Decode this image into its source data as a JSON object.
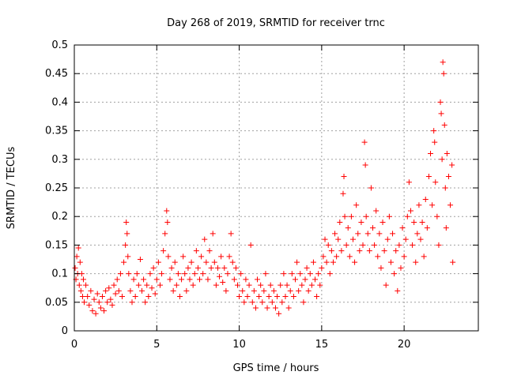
{
  "chart_data": {
    "type": "scatter",
    "title": "Day 268 of 2019, SRMTID for receiver trnc",
    "xlabel": "GPS time / hours",
    "ylabel": "SRMTID / TECUs",
    "xlim": [
      0,
      24.5
    ],
    "ylim": [
      0,
      0.5
    ],
    "grid": true,
    "marker": "+",
    "xticks": [
      0,
      5,
      10,
      15,
      20
    ],
    "xtick_labels": [
      "0",
      "5",
      "10",
      "15",
      "20"
    ],
    "yticks": [
      0,
      0.05,
      0.1,
      0.15,
      0.2,
      0.25,
      0.3,
      0.35,
      0.4,
      0.45,
      0.5
    ],
    "ytick_labels": [
      "0",
      "0.05",
      "0.1",
      "0.15",
      "0.2",
      "0.25",
      "0.3",
      "0.35",
      "0.4",
      "0.45",
      "0.5"
    ],
    "series": [
      {
        "name": "SRMTID",
        "color": "#ff0000",
        "points": [
          [
            0.05,
            0.11
          ],
          [
            0.1,
            0.09
          ],
          [
            0.15,
            0.13
          ],
          [
            0.2,
            0.1
          ],
          [
            0.25,
            0.145
          ],
          [
            0.3,
            0.08
          ],
          [
            0.35,
            0.12
          ],
          [
            0.4,
            0.07
          ],
          [
            0.45,
            0.1
          ],
          [
            0.5,
            0.06
          ],
          [
            0.55,
            0.09
          ],
          [
            0.6,
            0.05
          ],
          [
            0.7,
            0.08
          ],
          [
            0.8,
            0.06
          ],
          [
            0.9,
            0.045
          ],
          [
            1.0,
            0.07
          ],
          [
            1.1,
            0.035
          ],
          [
            1.2,
            0.055
          ],
          [
            1.3,
            0.03
          ],
          [
            1.4,
            0.065
          ],
          [
            1.5,
            0.05
          ],
          [
            1.6,
            0.04
          ],
          [
            1.7,
            0.06
          ],
          [
            1.8,
            0.035
          ],
          [
            1.9,
            0.07
          ],
          [
            2.0,
            0.05
          ],
          [
            2.1,
            0.075
          ],
          [
            2.2,
            0.055
          ],
          [
            2.3,
            0.045
          ],
          [
            2.4,
            0.08
          ],
          [
            2.5,
            0.065
          ],
          [
            2.6,
            0.09
          ],
          [
            2.7,
            0.07
          ],
          [
            2.8,
            0.1
          ],
          [
            2.9,
            0.06
          ],
          [
            3.0,
            0.12
          ],
          [
            3.1,
            0.15
          ],
          [
            3.15,
            0.19
          ],
          [
            3.2,
            0.17
          ],
          [
            3.25,
            0.13
          ],
          [
            3.3,
            0.1
          ],
          [
            3.4,
            0.07
          ],
          [
            3.5,
            0.05
          ],
          [
            3.6,
            0.09
          ],
          [
            3.7,
            0.06
          ],
          [
            3.8,
            0.1
          ],
          [
            3.9,
            0.08
          ],
          [
            4.0,
            0.125
          ],
          [
            4.1,
            0.07
          ],
          [
            4.2,
            0.09
          ],
          [
            4.3,
            0.05
          ],
          [
            4.4,
            0.08
          ],
          [
            4.5,
            0.06
          ],
          [
            4.6,
            0.1
          ],
          [
            4.7,
            0.075
          ],
          [
            4.8,
            0.11
          ],
          [
            4.9,
            0.065
          ],
          [
            5.0,
            0.09
          ],
          [
            5.1,
            0.12
          ],
          [
            5.2,
            0.08
          ],
          [
            5.3,
            0.1
          ],
          [
            5.4,
            0.14
          ],
          [
            5.5,
            0.17
          ],
          [
            5.6,
            0.21
          ],
          [
            5.65,
            0.19
          ],
          [
            5.7,
            0.13
          ],
          [
            5.8,
            0.09
          ],
          [
            5.9,
            0.11
          ],
          [
            6.0,
            0.07
          ],
          [
            6.1,
            0.12
          ],
          [
            6.2,
            0.08
          ],
          [
            6.3,
            0.1
          ],
          [
            6.4,
            0.06
          ],
          [
            6.5,
            0.09
          ],
          [
            6.6,
            0.13
          ],
          [
            6.7,
            0.1
          ],
          [
            6.8,
            0.07
          ],
          [
            6.9,
            0.11
          ],
          [
            7.0,
            0.09
          ],
          [
            7.1,
            0.12
          ],
          [
            7.2,
            0.08
          ],
          [
            7.3,
            0.1
          ],
          [
            7.4,
            0.14
          ],
          [
            7.5,
            0.11
          ],
          [
            7.6,
            0.09
          ],
          [
            7.7,
            0.13
          ],
          [
            7.8,
            0.1
          ],
          [
            7.9,
            0.16
          ],
          [
            8.0,
            0.12
          ],
          [
            8.1,
            0.09
          ],
          [
            8.2,
            0.14
          ],
          [
            8.3,
            0.11
          ],
          [
            8.4,
            0.17
          ],
          [
            8.5,
            0.12
          ],
          [
            8.6,
            0.08
          ],
          [
            8.7,
            0.11
          ],
          [
            8.8,
            0.095
          ],
          [
            8.9,
            0.13
          ],
          [
            9.0,
            0.085
          ],
          [
            9.1,
            0.11
          ],
          [
            9.2,
            0.07
          ],
          [
            9.3,
            0.1
          ],
          [
            9.4,
            0.13
          ],
          [
            9.5,
            0.17
          ],
          [
            9.6,
            0.12
          ],
          [
            9.7,
            0.09
          ],
          [
            9.8,
            0.11
          ],
          [
            9.9,
            0.08
          ],
          [
            10.0,
            0.06
          ],
          [
            10.1,
            0.1
          ],
          [
            10.2,
            0.07
          ],
          [
            10.3,
            0.05
          ],
          [
            10.4,
            0.09
          ],
          [
            10.5,
            0.06
          ],
          [
            10.6,
            0.08
          ],
          [
            10.7,
            0.15
          ],
          [
            10.8,
            0.05
          ],
          [
            10.9,
            0.07
          ],
          [
            11.0,
            0.04
          ],
          [
            11.1,
            0.09
          ],
          [
            11.2,
            0.06
          ],
          [
            11.3,
            0.08
          ],
          [
            11.4,
            0.05
          ],
          [
            11.5,
            0.07
          ],
          [
            11.6,
            0.1
          ],
          [
            11.7,
            0.04
          ],
          [
            11.8,
            0.06
          ],
          [
            11.9,
            0.08
          ],
          [
            12.0,
            0.05
          ],
          [
            12.1,
            0.07
          ],
          [
            12.2,
            0.04
          ],
          [
            12.3,
            0.06
          ],
          [
            12.4,
            0.03
          ],
          [
            12.5,
            0.08
          ],
          [
            12.6,
            0.05
          ],
          [
            12.7,
            0.1
          ],
          [
            12.8,
            0.06
          ],
          [
            12.9,
            0.08
          ],
          [
            13.0,
            0.04
          ],
          [
            13.1,
            0.07
          ],
          [
            13.2,
            0.1
          ],
          [
            13.3,
            0.06
          ],
          [
            13.4,
            0.09
          ],
          [
            13.5,
            0.12
          ],
          [
            13.6,
            0.07
          ],
          [
            13.7,
            0.1
          ],
          [
            13.8,
            0.08
          ],
          [
            13.9,
            0.05
          ],
          [
            14.0,
            0.09
          ],
          [
            14.1,
            0.11
          ],
          [
            14.2,
            0.07
          ],
          [
            14.3,
            0.1
          ],
          [
            14.4,
            0.08
          ],
          [
            14.5,
            0.12
          ],
          [
            14.6,
            0.09
          ],
          [
            14.7,
            0.06
          ],
          [
            14.8,
            0.1
          ],
          [
            14.9,
            0.08
          ],
          [
            15.0,
            0.11
          ],
          [
            15.1,
            0.13
          ],
          [
            15.2,
            0.16
          ],
          [
            15.3,
            0.12
          ],
          [
            15.4,
            0.15
          ],
          [
            15.5,
            0.1
          ],
          [
            15.6,
            0.14
          ],
          [
            15.7,
            0.12
          ],
          [
            15.8,
            0.17
          ],
          [
            15.9,
            0.13
          ],
          [
            16.0,
            0.16
          ],
          [
            16.1,
            0.19
          ],
          [
            16.2,
            0.14
          ],
          [
            16.3,
            0.24
          ],
          [
            16.35,
            0.27
          ],
          [
            16.4,
            0.2
          ],
          [
            16.5,
            0.15
          ],
          [
            16.6,
            0.18
          ],
          [
            16.7,
            0.13
          ],
          [
            16.8,
            0.2
          ],
          [
            16.9,
            0.16
          ],
          [
            17.0,
            0.12
          ],
          [
            17.1,
            0.22
          ],
          [
            17.2,
            0.17
          ],
          [
            17.3,
            0.14
          ],
          [
            17.4,
            0.19
          ],
          [
            17.5,
            0.15
          ],
          [
            17.6,
            0.33
          ],
          [
            17.65,
            0.29
          ],
          [
            17.7,
            0.2
          ],
          [
            17.8,
            0.17
          ],
          [
            17.9,
            0.14
          ],
          [
            18.0,
            0.25
          ],
          [
            18.1,
            0.18
          ],
          [
            18.2,
            0.15
          ],
          [
            18.3,
            0.21
          ],
          [
            18.4,
            0.13
          ],
          [
            18.5,
            0.17
          ],
          [
            18.6,
            0.11
          ],
          [
            18.7,
            0.19
          ],
          [
            18.8,
            0.14
          ],
          [
            18.9,
            0.08
          ],
          [
            19.0,
            0.16
          ],
          [
            19.1,
            0.2
          ],
          [
            19.2,
            0.12
          ],
          [
            19.3,
            0.17
          ],
          [
            19.4,
            0.1
          ],
          [
            19.5,
            0.14
          ],
          [
            19.6,
            0.07
          ],
          [
            19.7,
            0.15
          ],
          [
            19.8,
            0.11
          ],
          [
            19.9,
            0.18
          ],
          [
            20.0,
            0.13
          ],
          [
            20.1,
            0.16
          ],
          [
            20.2,
            0.2
          ],
          [
            20.3,
            0.26
          ],
          [
            20.4,
            0.21
          ],
          [
            20.5,
            0.15
          ],
          [
            20.6,
            0.19
          ],
          [
            20.7,
            0.12
          ],
          [
            20.8,
            0.17
          ],
          [
            20.9,
            0.22
          ],
          [
            21.0,
            0.16
          ],
          [
            21.1,
            0.19
          ],
          [
            21.2,
            0.13
          ],
          [
            21.3,
            0.23
          ],
          [
            21.4,
            0.18
          ],
          [
            21.5,
            0.27
          ],
          [
            21.6,
            0.31
          ],
          [
            21.7,
            0.22
          ],
          [
            21.8,
            0.35
          ],
          [
            21.85,
            0.33
          ],
          [
            21.9,
            0.26
          ],
          [
            22.0,
            0.2
          ],
          [
            22.1,
            0.15
          ],
          [
            22.2,
            0.4
          ],
          [
            22.25,
            0.38
          ],
          [
            22.3,
            0.3
          ],
          [
            22.35,
            0.47
          ],
          [
            22.4,
            0.45
          ],
          [
            22.45,
            0.36
          ],
          [
            22.5,
            0.25
          ],
          [
            22.55,
            0.18
          ],
          [
            22.6,
            0.31
          ],
          [
            22.7,
            0.27
          ],
          [
            22.8,
            0.22
          ],
          [
            22.9,
            0.29
          ],
          [
            22.95,
            0.12
          ]
        ]
      }
    ]
  }
}
